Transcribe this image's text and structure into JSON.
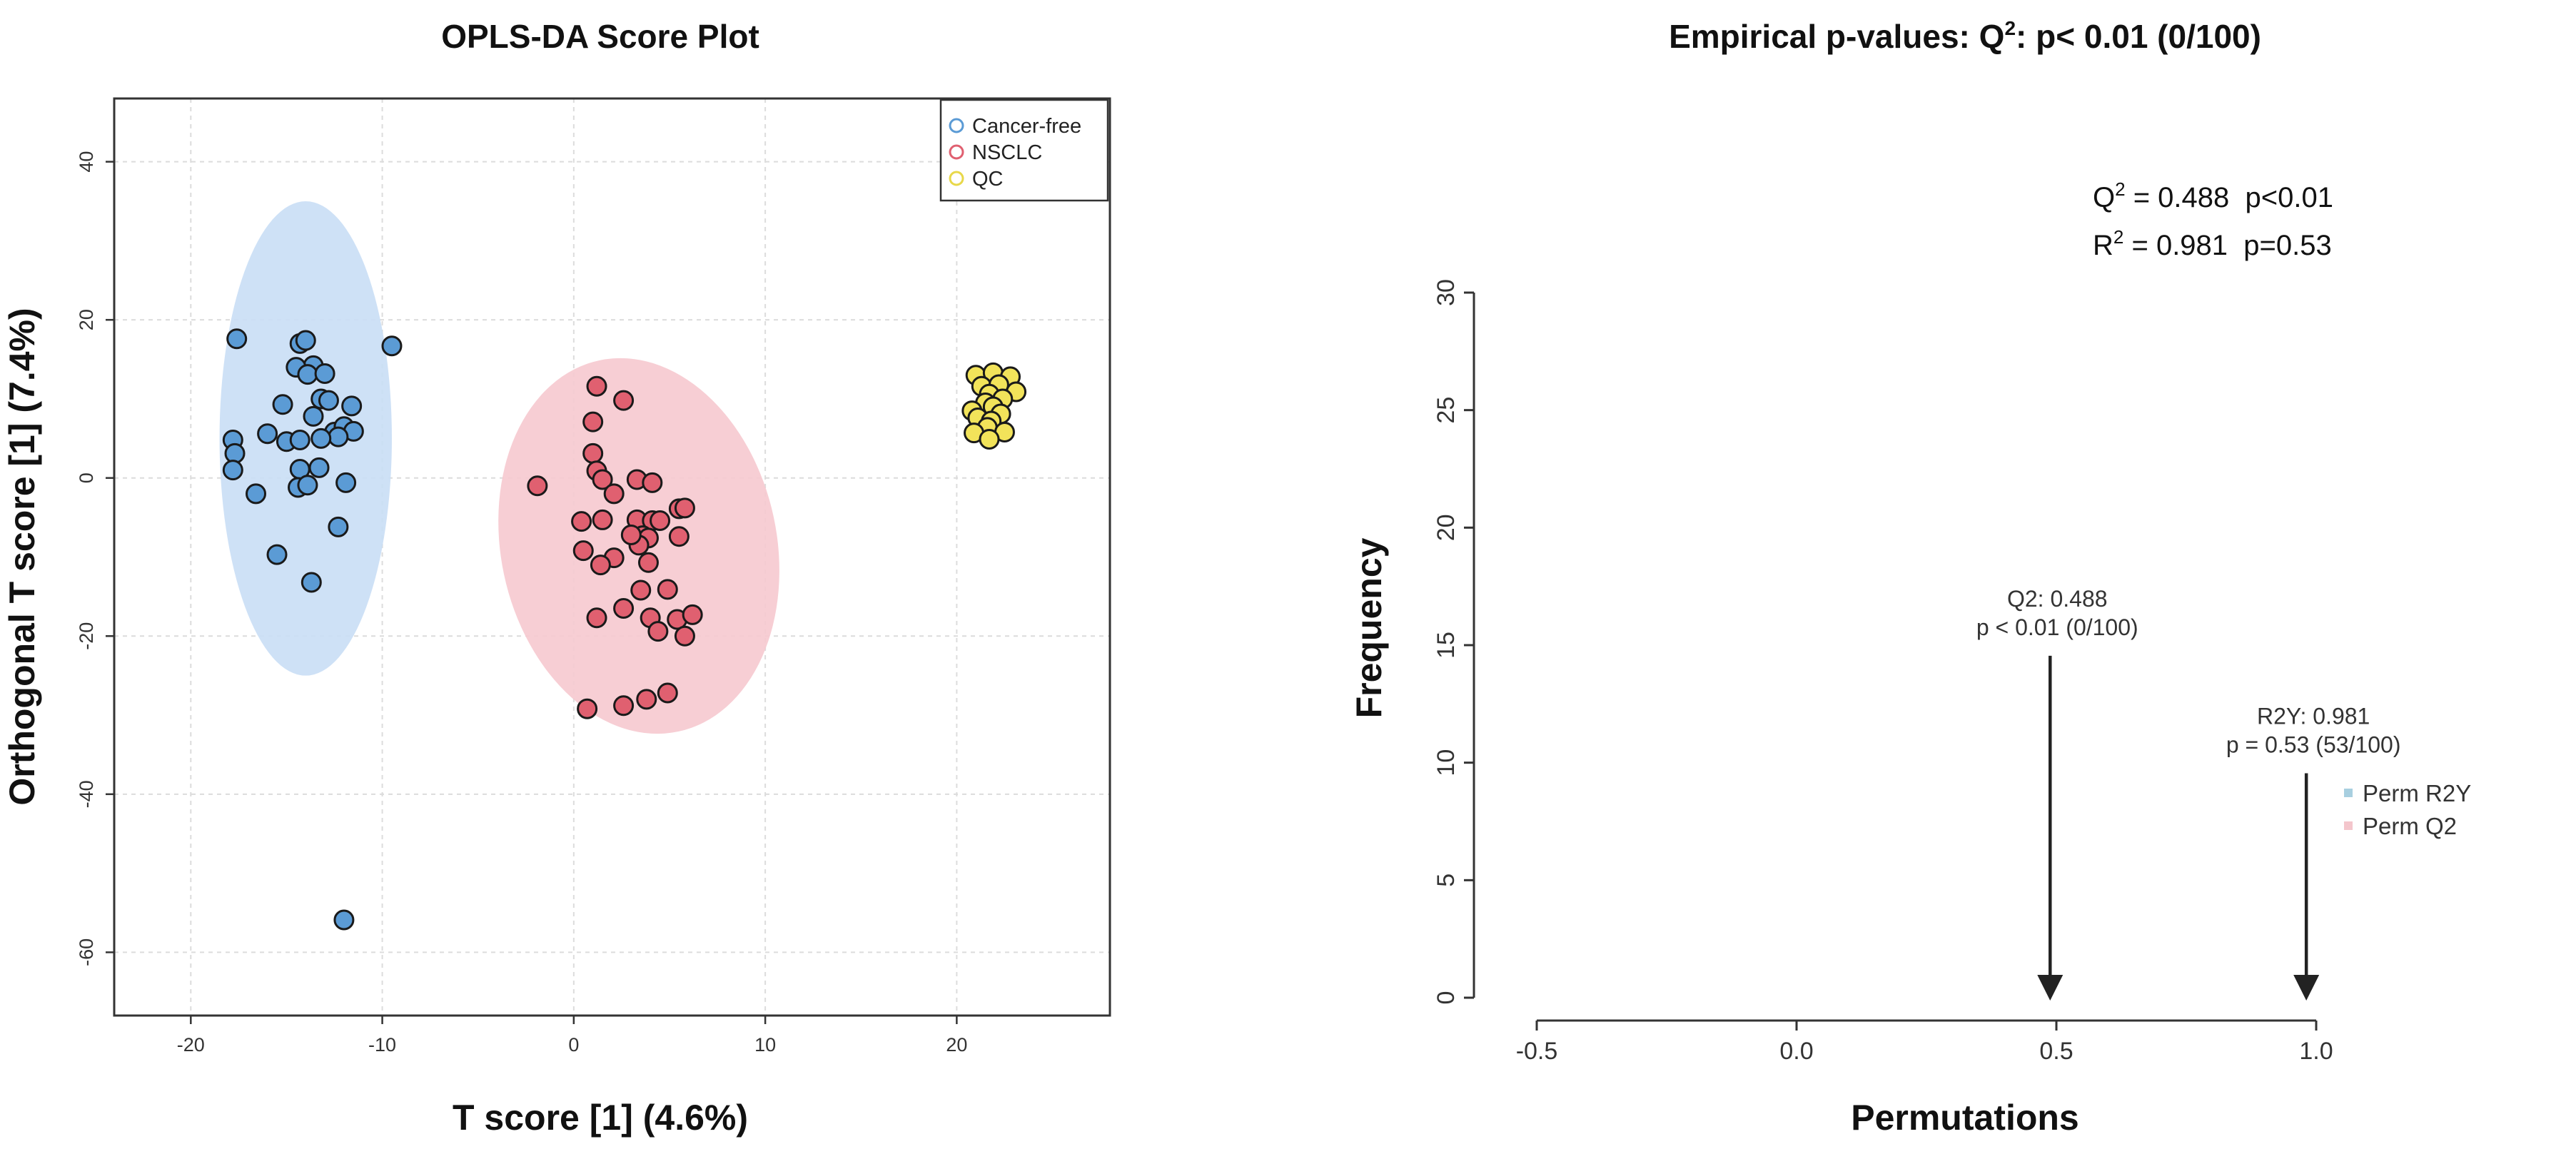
{
  "chart_data": [
    {
      "type": "scatter",
      "title": "OPLS-DA Score Plot",
      "xlabel": "T score [1] (4.6%)",
      "ylabel": "Orthogonal T score [1] (7.4%)",
      "xlim": [
        -24,
        28
      ],
      "ylim": [
        -68,
        48
      ],
      "xticks": [
        -20,
        -10,
        0,
        10,
        20
      ],
      "yticks": [
        -60,
        -40,
        -20,
        0,
        20,
        40
      ],
      "tick_labels_x": [
        "-20",
        "-10",
        "0",
        "10",
        "20"
      ],
      "tick_labels_y": [
        "-60",
        "-40",
        "-20",
        "0",
        "20",
        "40"
      ],
      "grid": true,
      "legend_position": "top-right",
      "series": [
        {
          "name": "Cancer-free",
          "color": "#5b9bd5",
          "ellipse_color": "#c9def5",
          "ellipse": {
            "cx": -14,
            "cy": 5,
            "rx": 4.5,
            "ry": 30
          },
          "points": [
            [
              -17.6,
              17.6
            ],
            [
              -14.3,
              17.0
            ],
            [
              -14.0,
              17.4
            ],
            [
              -13.6,
              14.2
            ],
            [
              -14.5,
              14.0
            ],
            [
              -13.9,
              13.1
            ],
            [
              -13.0,
              13.2
            ],
            [
              -9.5,
              16.7
            ],
            [
              -17.8,
              4.8
            ],
            [
              -17.7,
              3.1
            ],
            [
              -17.8,
              1.0
            ],
            [
              -16.0,
              5.6
            ],
            [
              -15.2,
              9.3
            ],
            [
              -15.0,
              4.6
            ],
            [
              -14.3,
              4.8
            ],
            [
              -13.6,
              7.8
            ],
            [
              -13.2,
              10.0
            ],
            [
              -12.8,
              9.8
            ],
            [
              -12.5,
              5.8
            ],
            [
              -12.0,
              6.5
            ],
            [
              -11.6,
              9.1
            ],
            [
              -11.5,
              5.9
            ],
            [
              -12.3,
              5.2
            ],
            [
              -13.2,
              5.0
            ],
            [
              -13.3,
              1.3
            ],
            [
              -14.3,
              1.1
            ],
            [
              -14.4,
              -1.2
            ],
            [
              -13.9,
              -0.9
            ],
            [
              -11.9,
              -0.6
            ],
            [
              -16.6,
              -2.0
            ],
            [
              -15.5,
              -9.7
            ],
            [
              -13.7,
              -13.2
            ],
            [
              -12.3,
              -6.2
            ],
            [
              -12.0,
              -55.9
            ]
          ]
        },
        {
          "name": "NSCLC",
          "color": "#e06070",
          "ellipse_color": "#f6c9cf",
          "ellipse": {
            "cx": 3.4,
            "cy": -8.6,
            "rx": 7.2,
            "ry": 24.0,
            "rotation_deg": -12
          },
          "points": [
            [
              -1.9,
              -1.0
            ],
            [
              1.2,
              11.6
            ],
            [
              2.6,
              9.8
            ],
            [
              1.0,
              7.1
            ],
            [
              1.0,
              3.1
            ],
            [
              1.2,
              0.9
            ],
            [
              1.5,
              -0.2
            ],
            [
              2.1,
              -2.0
            ],
            [
              3.3,
              -0.2
            ],
            [
              4.1,
              -0.6
            ],
            [
              5.5,
              -3.9
            ],
            [
              5.8,
              -3.8
            ],
            [
              0.4,
              -5.5
            ],
            [
              1.5,
              -5.3
            ],
            [
              3.3,
              -5.3
            ],
            [
              4.1,
              -5.4
            ],
            [
              4.5,
              -5.4
            ],
            [
              3.6,
              -7.3
            ],
            [
              3.9,
              -7.6
            ],
            [
              5.5,
              -7.4
            ],
            [
              0.5,
              -9.2
            ],
            [
              2.1,
              -10.1
            ],
            [
              1.4,
              -11.0
            ],
            [
              3.4,
              -8.5
            ],
            [
              3.9,
              -10.7
            ],
            [
              4.9,
              -14.1
            ],
            [
              3.5,
              -14.2
            ],
            [
              2.6,
              -16.5
            ],
            [
              4.0,
              -17.7
            ],
            [
              5.4,
              -17.9
            ],
            [
              6.2,
              -17.3
            ],
            [
              1.2,
              -17.7
            ],
            [
              4.4,
              -19.4
            ],
            [
              5.8,
              -20.0
            ],
            [
              2.6,
              -28.8
            ],
            [
              3.8,
              -28.0
            ],
            [
              4.9,
              -27.2
            ],
            [
              0.7,
              -29.2
            ],
            [
              3.0,
              -7.2
            ]
          ]
        },
        {
          "name": "QC",
          "color": "#f2e35a",
          "points": [
            [
              21.0,
              13.0
            ],
            [
              21.9,
              13.3
            ],
            [
              22.8,
              12.8
            ],
            [
              21.3,
              11.6
            ],
            [
              22.2,
              11.8
            ],
            [
              23.1,
              10.9
            ],
            [
              21.7,
              10.6
            ],
            [
              22.4,
              10.0
            ],
            [
              21.5,
              9.5
            ],
            [
              21.9,
              9.0
            ],
            [
              20.8,
              8.5
            ],
            [
              22.3,
              8.1
            ],
            [
              21.1,
              7.6
            ],
            [
              21.8,
              7.2
            ],
            [
              21.6,
              6.4
            ],
            [
              22.5,
              5.8
            ],
            [
              20.9,
              5.7
            ],
            [
              21.7,
              4.9
            ]
          ]
        }
      ]
    },
    {
      "type": "histogram",
      "title": "Empirical p-values: Q",
      "title_superscript": "2",
      "title_suffix": ": p< 0.01 (0/100)",
      "xlabel": "Permutations",
      "ylabel": "Frequency",
      "xlim": [
        -0.5,
        1.0
      ],
      "ylim": [
        0,
        30
      ],
      "xticks": [
        -0.5,
        0.0,
        0.5,
        1.0
      ],
      "yticks": [
        0,
        5,
        10,
        15,
        20,
        25,
        30
      ],
      "tick_labels_x": [
        "-0.5",
        "0.0",
        "0.5",
        "1.0"
      ],
      "tick_labels_y": [
        "0",
        "5",
        "10",
        "15",
        "20",
        "25",
        "30"
      ],
      "stats": [
        {
          "prefix": "Q",
          "sup": "2",
          "text": " = 0.488  p<0.01"
        },
        {
          "prefix": "R",
          "sup": "2",
          "text": " = 0.981  p=0.53"
        }
      ],
      "annotations": [
        {
          "line1": "Q2: 0.488",
          "line2": "p < 0.01 (0/100)",
          "x": 0.488,
          "y_top": 14.7,
          "y_bottom": 0
        },
        {
          "line1": "R2Y: 0.981",
          "line2": "p = 0.53 (53/100)",
          "x": 0.981,
          "y_top": 9.7,
          "y_bottom": 0
        }
      ],
      "legend_position": "right",
      "legend": [
        {
          "name": "Perm R2Y",
          "color": "#a8cfe0"
        },
        {
          "name": "Perm Q2",
          "color": "#f4c6cc"
        }
      ],
      "perm_r2y_values": [],
      "perm_q2_values": []
    }
  ]
}
